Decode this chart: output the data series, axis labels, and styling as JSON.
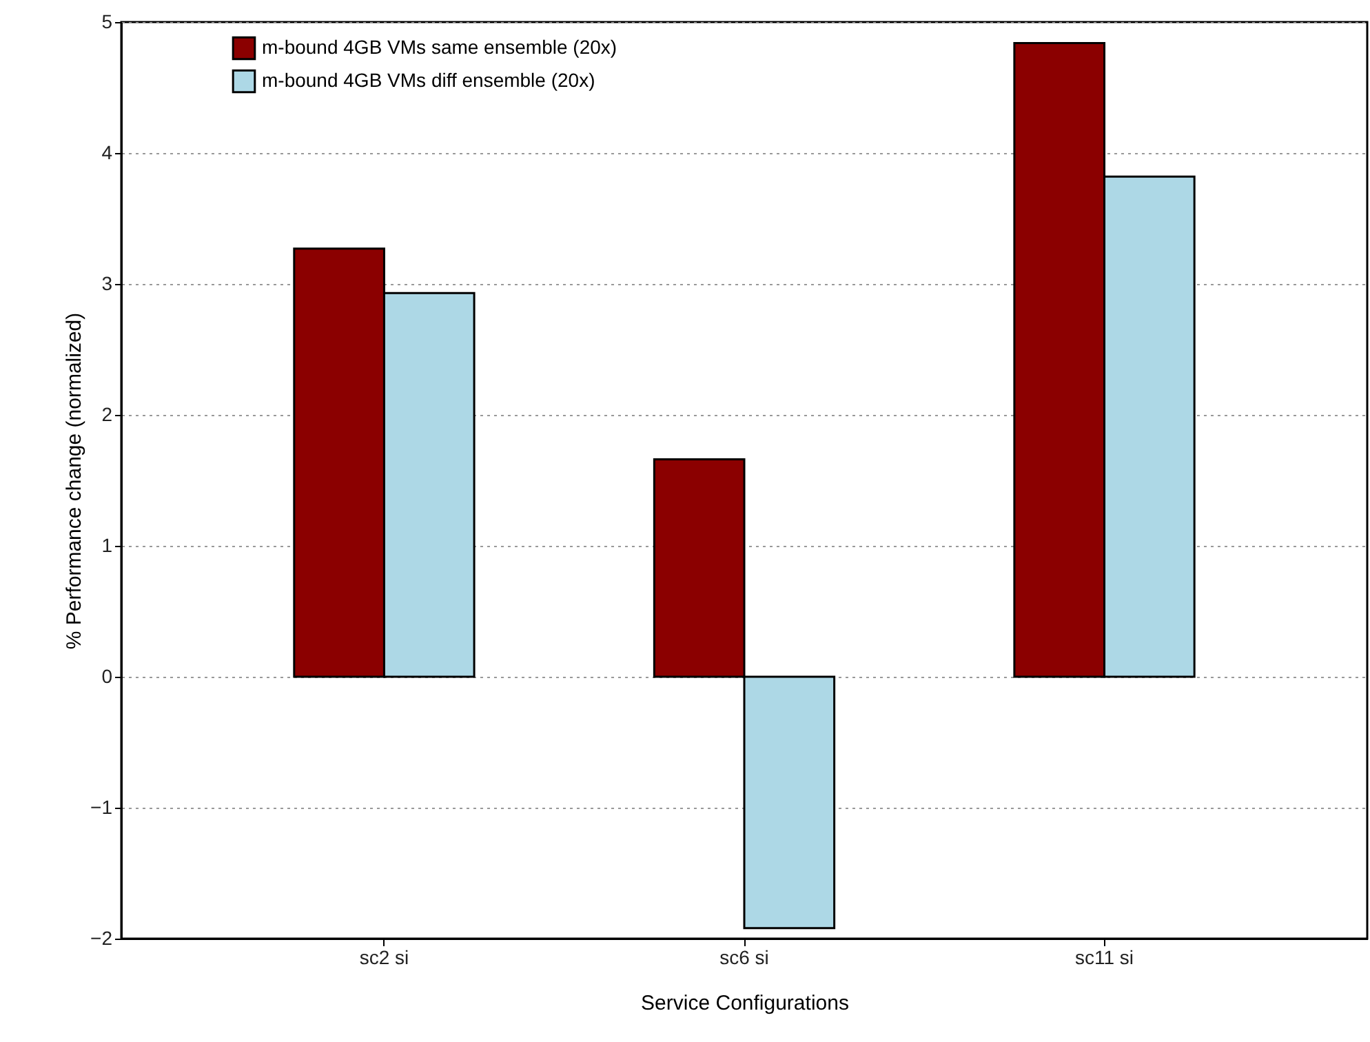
{
  "chart_data": {
    "type": "bar",
    "xlabel": "Service Configurations",
    "ylabel": "% Performance change (normalized)",
    "categories": [
      "sc2 si",
      "sc6 si",
      "sc11 si"
    ],
    "series": [
      {
        "name": "m-bound 4GB VMs same ensemble (20x)",
        "color": "#8b0000",
        "values": [
          3.27,
          1.66,
          4.84
        ]
      },
      {
        "name": "m-bound 4GB VMs diff ensemble (20x)",
        "color": "#add8e6",
        "values": [
          2.93,
          -1.92,
          3.82
        ]
      }
    ],
    "ylim": [
      -2,
      5
    ],
    "yticks": [
      -2,
      -1,
      0,
      1,
      2,
      3,
      4,
      5
    ],
    "grid": "y",
    "legend": "top left"
  }
}
